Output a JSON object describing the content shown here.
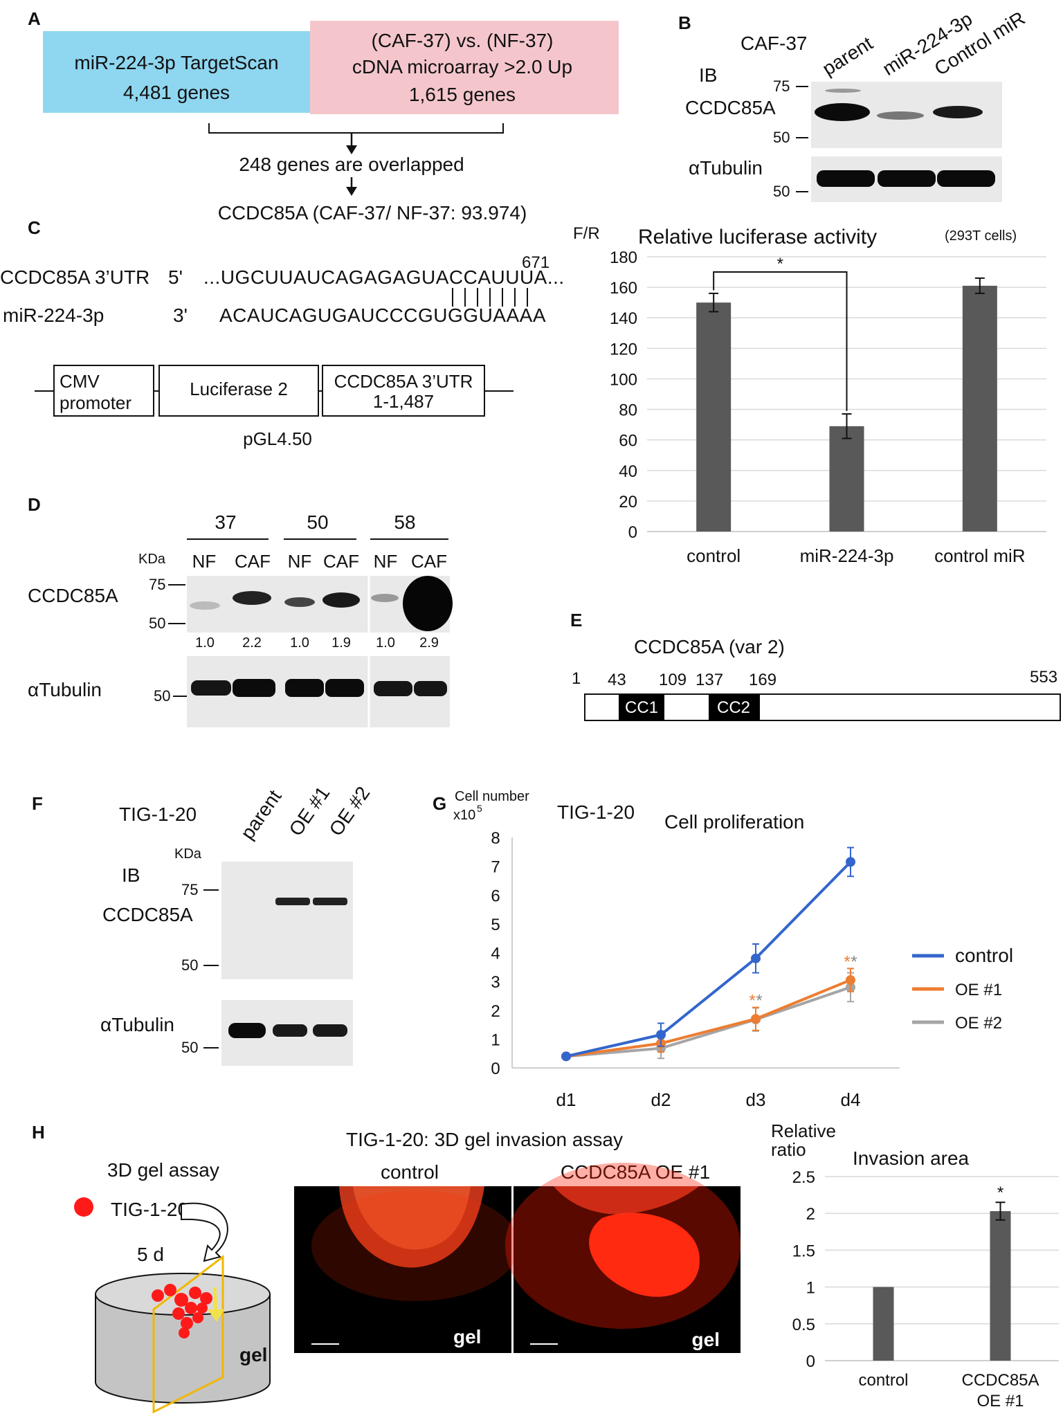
{
  "panels": {
    "A": {
      "label": "A",
      "box_left": [
        "miR-224-3p TargetScan",
        "4,481 genes"
      ],
      "box_right": [
        "(CAF-37) vs. (NF-37)",
        "cDNA microarray >2.0 Up",
        "1,615 genes"
      ],
      "overlap": "248 genes are overlapped",
      "result": "CCDC85A (CAF-37/ NF-37: 93.974)",
      "colors": {
        "left_box": "#8fd6f0",
        "right_box": "#f4c6cb"
      }
    },
    "B": {
      "label": "B",
      "cell": "CAF-37",
      "lanes": [
        "parent",
        "miR-224-3p",
        "Control miR"
      ],
      "ib": "IB",
      "protein": "CCDC85A",
      "loading": "αTubulin",
      "mw_75": "75",
      "mw_50": "50",
      "mw_50b": "50",
      "band_intensity": [
        1.0,
        0.35,
        0.8
      ]
    },
    "C": {
      "label": "C",
      "utr_label": "CCDC85A 3’UTR",
      "utr_end": "5'",
      "utr_seq": "...UGCUUAUCAGAGAGUACCAUUUA...",
      "mir_label": "miR-224-3p",
      "mir_end": "3'",
      "mir_seq": "ACAUCAGUGAUCCCGUGGUAAAA",
      "position": "671",
      "construct": {
        "promoter": [
          "CMV",
          "promoter"
        ],
        "luciferase": "Luciferase 2",
        "utr": [
          "CCDC85A 3’UTR",
          "1-1,487"
        ],
        "vector": "pGL4.50"
      }
    },
    "D": {
      "label": "D",
      "groups": [
        "37",
        "50",
        "58"
      ],
      "kda": "KDa",
      "lanes": [
        "NF",
        "CAF",
        "NF",
        "CAF",
        "NF",
        "CAF"
      ],
      "protein": "CCDC85A",
      "loading": "αTubulin",
      "mw_75": "75",
      "mw_50": "50",
      "mw_50b": "50",
      "ratios": [
        "1.0",
        "2.2",
        "1.0",
        "1.9",
        "1.0",
        "2.9"
      ]
    },
    "E": {
      "label": "E",
      "title": "CCDC85A (var 2)",
      "positions": [
        "1",
        "43",
        "109",
        "137",
        "169",
        "553"
      ],
      "domains": [
        "CC1",
        "CC2"
      ]
    },
    "F": {
      "label": "F",
      "cell": "TIG-1-20",
      "lanes": [
        "parent",
        "OE #1",
        "OE #2"
      ],
      "kda": "KDa",
      "ib": "IB",
      "protein": "CCDC85A",
      "loading": "αTubulin",
      "mw_75": "75",
      "mw_50": "50",
      "mw_50b": "50"
    },
    "G": {
      "label": "G",
      "cell": "TIG-1-20",
      "star": "*"
    },
    "H": {
      "label": "H",
      "schematic_title": "3D gel assay",
      "cell_legend": "TIG-1-20",
      "duration": "5 d",
      "gel": "gel",
      "title": "TIG-1-20:  3D gel invasion assay",
      "image_labels": [
        "control",
        "CCDC85A OE #1"
      ],
      "image_gel_labels": [
        "gel",
        "gel"
      ],
      "colors": {
        "cells": "#ff1a1a",
        "frame": "#f2b700"
      }
    }
  },
  "chart_data": [
    {
      "id": "luciferase",
      "type": "bar",
      "title": "Relative luciferase activity",
      "subtitle": "(293T cells)",
      "ylabel": "F/R",
      "categories": [
        "control",
        "miR-224-3p",
        "control miR"
      ],
      "values": [
        150,
        69,
        161
      ],
      "errors": [
        6,
        8,
        5
      ],
      "ylim": [
        0,
        180
      ],
      "yticks": [
        0,
        20,
        40,
        60,
        80,
        100,
        120,
        140,
        160,
        180
      ],
      "significance": "*",
      "grid": true,
      "color": "#595959"
    },
    {
      "id": "proliferation",
      "type": "line",
      "title": "Cell proliferation",
      "ylabel": [
        "Cell number",
        "x10",
        "5"
      ],
      "x": [
        "d1",
        "d2",
        "d3",
        "d4"
      ],
      "ylim": [
        0,
        8
      ],
      "yticks": [
        0,
        1,
        2,
        3,
        4,
        5,
        6,
        7,
        8
      ],
      "series": [
        {
          "name": "control",
          "values": [
            0.4,
            1.15,
            3.8,
            7.15
          ],
          "errors": [
            0.05,
            0.4,
            0.5,
            0.5
          ],
          "color": "#3366cc"
        },
        {
          "name": "OE #1",
          "values": [
            0.4,
            0.85,
            1.7,
            3.05
          ],
          "errors": [
            0.05,
            0.3,
            0.4,
            0.4
          ],
          "color": "#ed7d31"
        },
        {
          "name": "OE #2",
          "values": [
            0.4,
            0.68,
            1.68,
            2.8
          ],
          "errors": [
            0.05,
            0.35,
            0.4,
            0.5
          ],
          "color": "#a5a5a5"
        }
      ],
      "significance": {
        "d3": "*",
        "d4": "*"
      },
      "legend": "right",
      "grid": false
    },
    {
      "id": "invasion",
      "type": "bar",
      "title": "Invasion area",
      "ylabel": [
        "Relative",
        "ratio"
      ],
      "categories": [
        "control",
        "CCDC85A OE #1"
      ],
      "values": [
        1.0,
        2.03
      ],
      "errors": [
        0,
        0.12
      ],
      "ylim": [
        0,
        2.5
      ],
      "yticks": [
        0,
        0.5,
        1,
        1.5,
        2,
        2.5
      ],
      "significance": "*",
      "grid": true,
      "color": "#595959"
    }
  ]
}
